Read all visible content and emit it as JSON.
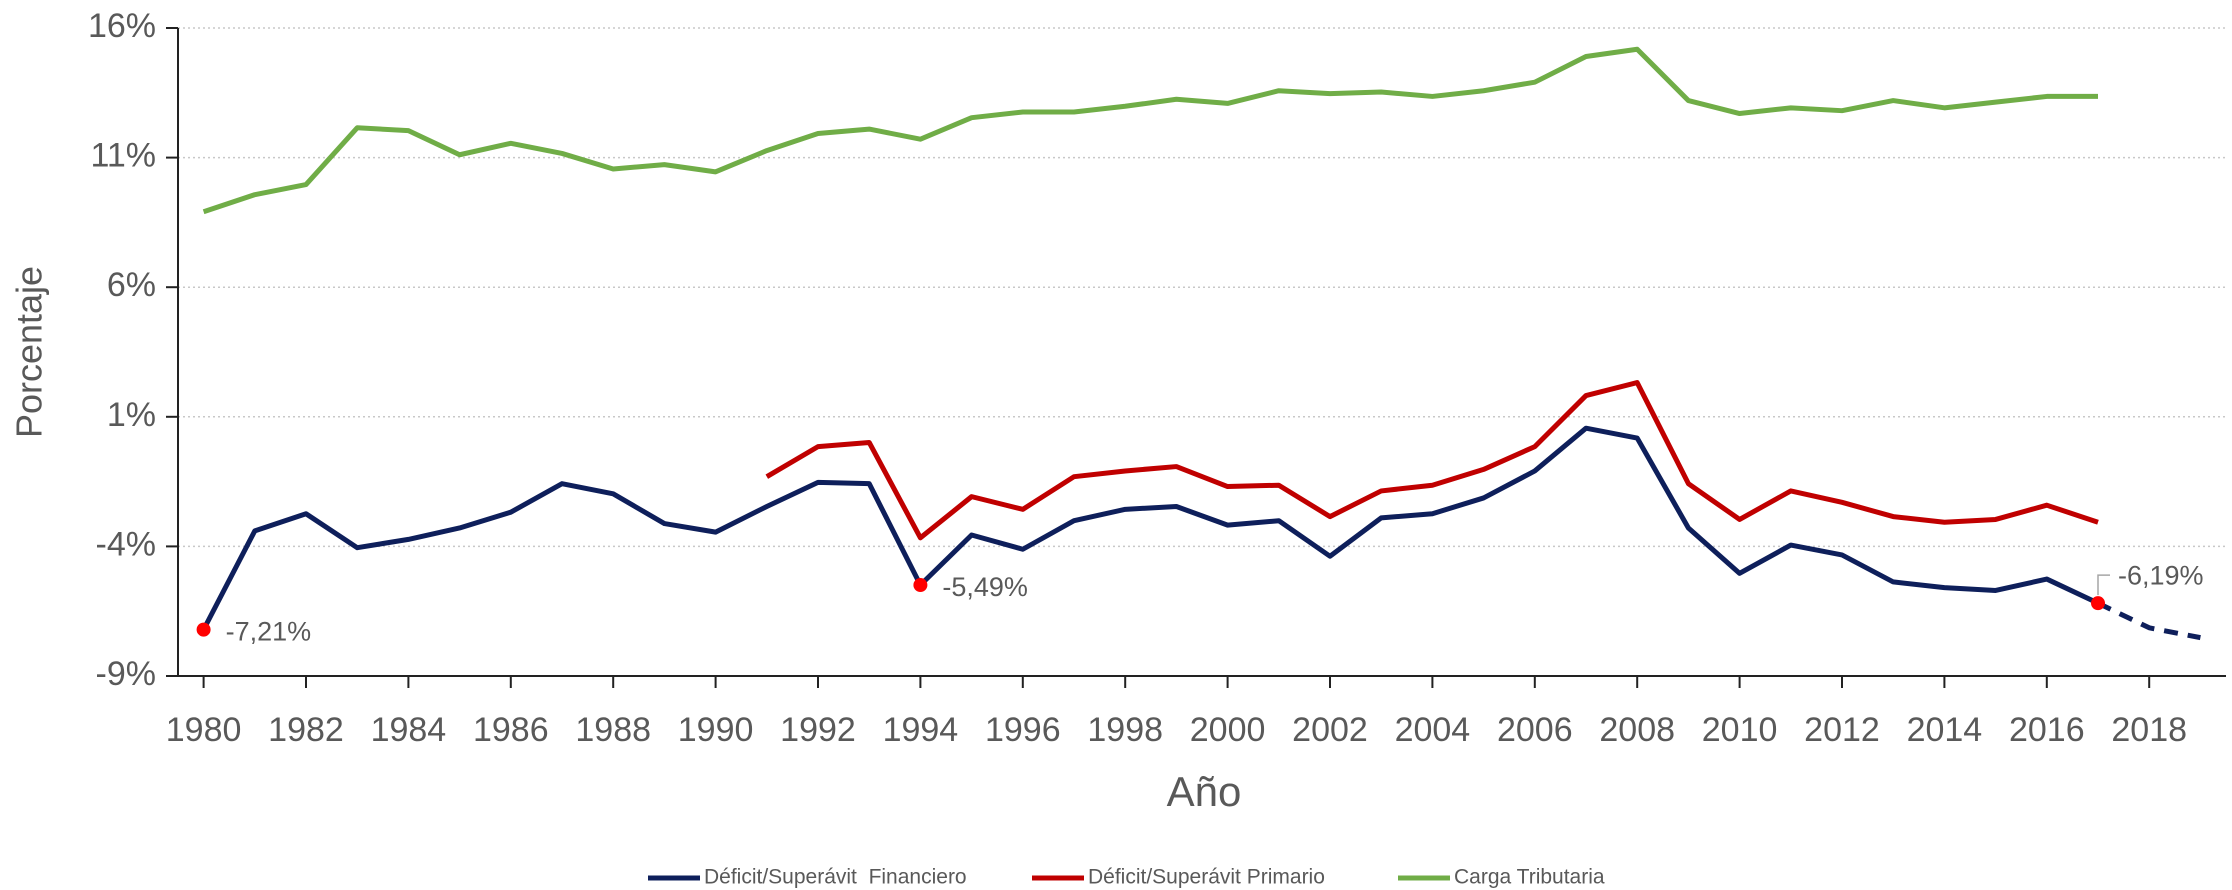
{
  "chart_data": {
    "type": "line",
    "xlabel": "Año",
    "ylabel": "Porcentaje",
    "x": [
      1980,
      1981,
      1982,
      1983,
      1984,
      1985,
      1986,
      1987,
      1988,
      1989,
      1990,
      1991,
      1992,
      1993,
      1994,
      1995,
      1996,
      1997,
      1998,
      1999,
      2000,
      2001,
      2002,
      2003,
      2004,
      2005,
      2006,
      2007,
      2008,
      2009,
      2010,
      2011,
      2012,
      2013,
      2014,
      2015,
      2016,
      2017,
      2018,
      2019
    ],
    "xlim": [
      1979.5,
      2019.5
    ],
    "xticks": [
      1980,
      1982,
      1984,
      1986,
      1988,
      1990,
      1992,
      1994,
      1996,
      1998,
      2000,
      2002,
      2004,
      2006,
      2008,
      2010,
      2012,
      2014,
      2016,
      2018
    ],
    "ylim": [
      -9,
      16
    ],
    "yticks": [
      {
        "value": -9,
        "label": "-9%"
      },
      {
        "value": -4,
        "label": "-4%"
      },
      {
        "value": 1,
        "label": "1%"
      },
      {
        "value": 6,
        "label": "6%"
      },
      {
        "value": 11,
        "label": "11%"
      },
      {
        "value": 16,
        "label": "16%"
      }
    ],
    "grid": true,
    "legend": "bottom",
    "dashed_after_x": 2017,
    "series": [
      {
        "name": "Déficit/Superávit  Financiero",
        "color": "#0e1f5b",
        "values": [
          -7.21,
          -3.4,
          -2.74,
          -4.05,
          -3.73,
          -3.29,
          -2.68,
          -1.58,
          -1.97,
          -3.12,
          -3.45,
          -2.46,
          -1.53,
          -1.58,
          -5.49,
          -3.56,
          -4.11,
          -3.01,
          -2.57,
          -2.46,
          -3.18,
          -3.01,
          -4.38,
          -2.9,
          -2.74,
          -2.13,
          -1.09,
          0.56,
          0.18,
          -3.29,
          -5.04,
          -3.95,
          -4.33,
          -5.37,
          -5.59,
          -5.7,
          -5.26,
          -6.19,
          -7.14,
          -7.52
        ],
        "value_labels": [
          "-7,21%",
          null,
          null,
          null,
          null,
          null,
          null,
          null,
          null,
          null,
          null,
          null,
          null,
          null,
          "-5,49%",
          null,
          null,
          null,
          null,
          null,
          null,
          null,
          null,
          null,
          null,
          null,
          null,
          null,
          null,
          null,
          null,
          null,
          null,
          null,
          null,
          null,
          null,
          "-6,19%",
          null,
          null
        ]
      },
      {
        "name": "Déficit/Superávit Primario",
        "color": "#c00000",
        "values": [
          null,
          null,
          null,
          null,
          null,
          null,
          null,
          null,
          null,
          null,
          null,
          -1.31,
          -0.15,
          0.01,
          -3.67,
          -2.08,
          -2.57,
          -1.31,
          -1.09,
          -0.92,
          -1.69,
          -1.64,
          -2.85,
          -1.86,
          -1.64,
          -1.03,
          -0.15,
          1.82,
          2.32,
          -1.58,
          -2.96,
          -1.86,
          -2.3,
          -2.85,
          -3.07,
          -2.96,
          -2.41,
          -3.07,
          null,
          null
        ]
      },
      {
        "name": "Carga Tributaria",
        "color": "#70ad47",
        "values": [
          8.91,
          9.57,
          9.96,
          12.15,
          12.04,
          11.11,
          11.55,
          11.16,
          10.56,
          10.73,
          10.45,
          11.27,
          11.93,
          12.1,
          11.71,
          12.54,
          12.76,
          12.76,
          12.98,
          13.25,
          13.09,
          13.58,
          13.47,
          13.53,
          13.36,
          13.58,
          13.91,
          14.9,
          15.18,
          13.2,
          12.7,
          12.92,
          12.81,
          13.2,
          12.92,
          13.14,
          13.36,
          13.36,
          null,
          null
        ]
      }
    ]
  }
}
